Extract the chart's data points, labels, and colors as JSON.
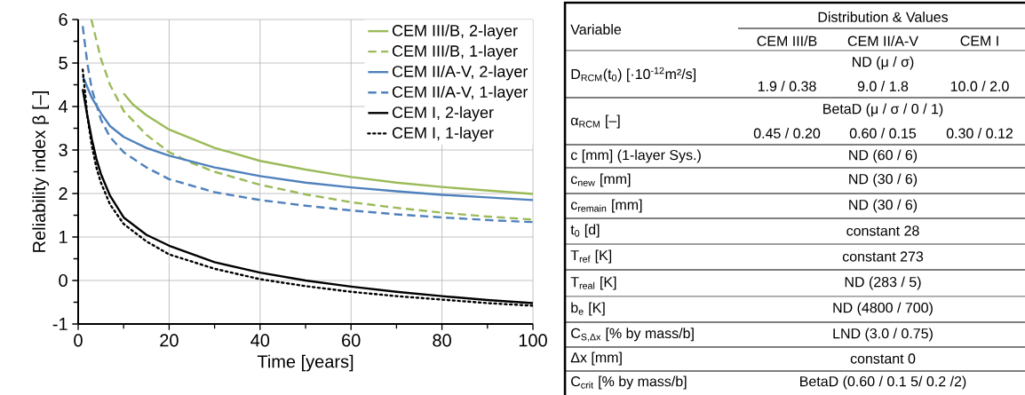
{
  "chart_data": [
    {
      "type": "line",
      "xlabel": "Time [years]",
      "ylabel": "Reliability index β [–]",
      "xlim": [
        0,
        100
      ],
      "ylim": [
        -1,
        6
      ],
      "xticks": [
        0,
        20,
        40,
        60,
        80,
        100
      ],
      "yticks": [
        -1,
        0,
        1,
        2,
        3,
        4,
        5,
        6
      ],
      "grid": true,
      "legend": "top right",
      "series": [
        {
          "name": "CEM III/B, 2-layer",
          "color": "#9bbb59",
          "line_style": "solid",
          "x": [
            10,
            12,
            15,
            20,
            30,
            40,
            50,
            60,
            70,
            80,
            90,
            100
          ],
          "values": [
            4.3,
            4.05,
            3.8,
            3.47,
            3.05,
            2.75,
            2.55,
            2.38,
            2.25,
            2.15,
            2.07,
            1.99
          ]
        },
        {
          "name": "CEM III/B, 1-layer",
          "color": "#9bbb59",
          "line_style": "dashed",
          "x": [
            2.9,
            5,
            7,
            10,
            15,
            20,
            25,
            30,
            40,
            50,
            60,
            70,
            80,
            90,
            100
          ],
          "values": [
            6.0,
            5.1,
            4.5,
            3.9,
            3.35,
            2.95,
            2.7,
            2.5,
            2.2,
            1.98,
            1.8,
            1.67,
            1.56,
            1.47,
            1.4
          ]
        },
        {
          "name": "CEM II/A-V, 2-layer",
          "color": "#4f81bd",
          "line_style": "solid",
          "x": [
            1,
            2,
            3,
            5,
            7,
            10,
            15,
            20,
            30,
            40,
            50,
            60,
            70,
            80,
            90,
            100
          ],
          "values": [
            4.7,
            4.45,
            4.2,
            3.85,
            3.55,
            3.3,
            3.05,
            2.87,
            2.6,
            2.4,
            2.25,
            2.14,
            2.05,
            1.97,
            1.91,
            1.85
          ]
        },
        {
          "name": "CEM II/A-V, 1-layer",
          "color": "#4f81bd",
          "line_style": "dashed",
          "x": [
            1,
            2,
            3,
            5,
            7,
            10,
            15,
            20,
            30,
            40,
            50,
            60,
            70,
            80,
            90,
            100
          ],
          "values": [
            5.85,
            5.0,
            4.4,
            3.7,
            3.3,
            2.95,
            2.6,
            2.33,
            2.03,
            1.85,
            1.72,
            1.61,
            1.52,
            1.45,
            1.39,
            1.34
          ]
        },
        {
          "name": "CEM I, 2-layer",
          "color": "#000000",
          "line_style": "solid",
          "x": [
            1,
            2,
            3,
            4,
            5,
            7,
            10,
            15,
            20,
            30,
            40,
            50,
            60,
            70,
            80,
            90,
            100
          ],
          "values": [
            4.4,
            3.8,
            3.25,
            2.8,
            2.45,
            1.95,
            1.45,
            1.05,
            0.8,
            0.42,
            0.18,
            0.0,
            -0.14,
            -0.26,
            -0.36,
            -0.45,
            -0.52
          ]
        },
        {
          "name": "CEM I, 1-layer",
          "color": "#000000",
          "line_style": "dotted",
          "x": [
            1,
            2,
            3,
            4,
            5,
            7,
            10,
            15,
            20,
            30,
            40,
            50,
            60,
            70,
            80,
            90,
            100
          ],
          "values": [
            4.85,
            3.8,
            3.1,
            2.6,
            2.25,
            1.75,
            1.3,
            0.9,
            0.6,
            0.27,
            0.03,
            -0.13,
            -0.26,
            -0.36,
            -0.44,
            -0.52,
            -0.58
          ]
        }
      ]
    },
    {
      "type": "other",
      "annotations": [
        "Variable",
        "Distribution & Values",
        "CEM III/B",
        "CEM II/A-V",
        "CEM I",
        "D$_{RCM}$(t$_{0}$) [·10$^{-12}$m²/s]",
        "ND (μ / σ)",
        "1.9 / 0.38",
        "9.0 / 1.8",
        "10.0 / 2.0",
        "α$_{RCM}$ [–]",
        "BetaD (μ / σ / 0 / 1)",
        "0.45 / 0.20",
        "0.60 / 0.15",
        "0.30 / 0.12",
        "c [mm] (1-layer Sys.)",
        "ND (60 / 6)",
        "c$_{new}$ [mm]",
        "ND (30 / 6)",
        "c$_{remain}$ [mm]",
        "ND (30 / 6)",
        "t$_{0}$ [d]",
        "constant 28",
        "T$_{ref}$ [K]",
        "constant 273",
        "T$_{real}$ [K]",
        "ND (283 / 5)",
        "b$_{e}$ [K]",
        "ND (4800 / 700)",
        "C$_{S,Δx}$ [% by mass/b]",
        "LND (3.0 / 0.75)",
        "Δx [mm]",
        "constant 0",
        "C$_{crit}$ [% by mass/b]",
        "BetaD (0.60 / 0.1 5/ 0.2 /2)"
      ]
    }
  ]
}
